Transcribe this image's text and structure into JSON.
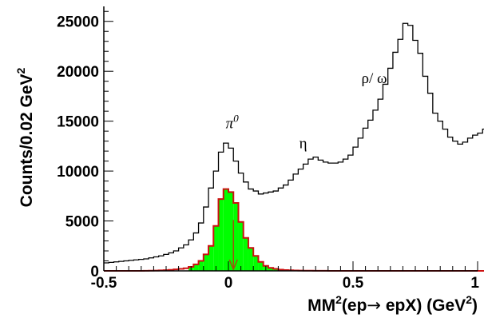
{
  "chart_data": {
    "type": "histogram",
    "xlabel": {
      "base": "MM",
      "sup": "2",
      "mid": "(ep",
      "arrow": "→",
      "end": " epX) (GeV",
      "sup2": "2",
      "close": ")"
    },
    "ylabel": {
      "base": "Counts/0.02 GeV",
      "sup": "2"
    },
    "xlim": [
      -0.5,
      1.0
    ],
    "ylim": [
      0,
      26500
    ],
    "x_ticks": [
      "-0.5",
      "0",
      "0.5",
      "1"
    ],
    "y_ticks": [
      "0",
      "5000",
      "10000",
      "15000",
      "20000",
      "25000"
    ],
    "x_tick_values": [
      -0.5,
      0,
      0.5,
      1
    ],
    "y_tick_values": [
      0,
      5000,
      10000,
      15000,
      20000,
      25000
    ],
    "bin_width": 0.02,
    "series": [
      {
        "style": "black step",
        "color": "#000000",
        "x_start": -0.5,
        "values": [
          800,
          850,
          900,
          950,
          1000,
          1050,
          1100,
          1150,
          1200,
          1300,
          1400,
          1500,
          1650,
          1800,
          2000,
          2300,
          2600,
          3100,
          3800,
          4800,
          6400,
          8300,
          10000,
          11900,
          12800,
          12300,
          11000,
          9800,
          8900,
          8200,
          8000,
          7700,
          7800,
          7900,
          8000,
          8300,
          8600,
          9100,
          9700,
          10200,
          10700,
          11200,
          11400,
          11100,
          10900,
          10800,
          10800,
          10900,
          11200,
          11600,
          12400,
          13300,
          14300,
          15100,
          16100,
          17200,
          18700,
          20300,
          21900,
          23200,
          24800,
          24600,
          23100,
          21800,
          19500,
          17800,
          15800,
          15000,
          14200,
          13400,
          13000,
          12700,
          12900,
          13300,
          13600,
          13800,
          14200,
          14100,
          14000,
          13900
        ]
      },
      {
        "style": "red step (filled green)",
        "color": "#cc1010",
        "fill": "#00ff00",
        "fill_range": [
          -0.16,
          0.2
        ],
        "x_start": -0.5,
        "values": [
          0,
          0,
          0,
          0,
          0,
          0,
          0,
          0,
          10,
          20,
          30,
          50,
          70,
          100,
          150,
          200,
          260,
          400,
          650,
          1000,
          1650,
          2500,
          4500,
          7200,
          8200,
          7900,
          6800,
          4900,
          3300,
          2300,
          1500,
          900,
          500,
          300,
          200,
          120,
          80,
          60,
          40,
          30,
          20,
          15,
          10,
          8,
          6,
          5,
          4,
          3,
          2,
          1,
          0,
          0,
          0,
          0,
          0,
          0,
          0,
          0,
          0,
          0,
          0,
          0,
          0,
          0,
          0,
          0,
          0,
          0,
          0,
          0,
          0,
          0,
          0,
          0,
          0,
          0,
          0,
          0,
          0,
          0
        ]
      }
    ],
    "annotations": [
      {
        "text": "π",
        "sup": "0",
        "x": 0.015,
        "y": 14300
      },
      {
        "text": "η",
        "x": 0.3,
        "y": 12300
      },
      {
        "text": "ρ/ ω",
        "x": 0.585,
        "y": 18800
      }
    ],
    "marker_arrow": {
      "x": 0.02,
      "y_from": 5100,
      "y_to": 0,
      "color": "#a05010"
    }
  }
}
